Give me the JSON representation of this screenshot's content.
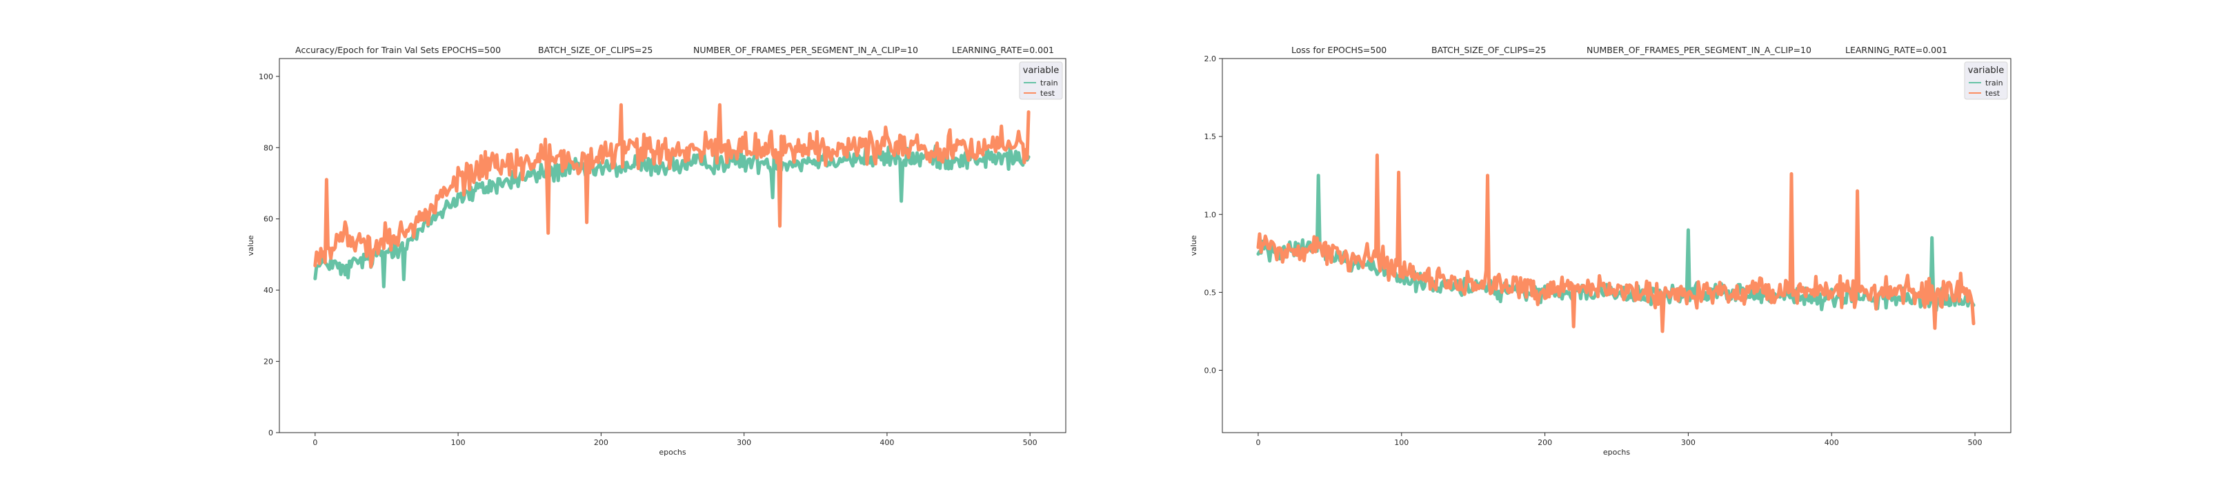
{
  "chart_data": [
    {
      "type": "line",
      "title_parts": [
        "Accuracy/Epoch for Train Val Sets EPOCHS=500",
        "BATCH_SIZE_OF_CLIPS=25",
        "NUMBER_OF_FRAMES_PER_SEGMENT_IN_A_CLIP=10",
        "LEARNING_RATE=0.001"
      ],
      "xlabel": "epochs",
      "ylabel": "value",
      "xlim": [
        -25,
        525
      ],
      "ylim": [
        0,
        105
      ],
      "xticks": [
        0,
        100,
        200,
        300,
        400,
        500
      ],
      "yticks": [
        0,
        20,
        40,
        60,
        80,
        100
      ],
      "x_range": [
        0,
        499
      ],
      "grid": false,
      "legend": {
        "title": "variable",
        "position": "top-right"
      },
      "series": [
        {
          "name": "train",
          "color": "#66c2a5",
          "anchors": [
            [
              0,
              46
            ],
            [
              10,
              48
            ],
            [
              20,
              45
            ],
            [
              30,
              48
            ],
            [
              40,
              49
            ],
            [
              50,
              51
            ],
            [
              60,
              53
            ],
            [
              70,
              55
            ],
            [
              80,
              59
            ],
            [
              90,
              63
            ],
            [
              100,
              66
            ],
            [
              110,
              67
            ],
            [
              120,
              69
            ],
            [
              130,
              70
            ],
            [
              140,
              71
            ],
            [
              150,
              72
            ],
            [
              160,
              73
            ],
            [
              180,
              74
            ],
            [
              200,
              74
            ],
            [
              220,
              75
            ],
            [
              240,
              75
            ],
            [
              260,
              75
            ],
            [
              280,
              76
            ],
            [
              300,
              76
            ],
            [
              320,
              76
            ],
            [
              340,
              76
            ],
            [
              360,
              77
            ],
            [
              380,
              77
            ],
            [
              400,
              77
            ],
            [
              420,
              77
            ],
            [
              440,
              77
            ],
            [
              460,
              77
            ],
            [
              480,
              77
            ],
            [
              499,
              77
            ]
          ],
          "noise": 4.5,
          "extremes": [
            [
              48,
              41
            ],
            [
              62,
              43
            ],
            [
              320,
              66
            ],
            [
              410,
              65
            ],
            [
              500,
              67
            ]
          ]
        },
        {
          "name": "test",
          "color": "#fc8d62",
          "anchors": [
            [
              0,
              49
            ],
            [
              10,
              52
            ],
            [
              20,
              55
            ],
            [
              30,
              53
            ],
            [
              40,
              52
            ],
            [
              50,
              54
            ],
            [
              60,
              56
            ],
            [
              70,
              58
            ],
            [
              80,
              62
            ],
            [
              90,
              67
            ],
            [
              100,
              71
            ],
            [
              110,
              73
            ],
            [
              120,
              75
            ],
            [
              130,
              75
            ],
            [
              140,
              76
            ],
            [
              160,
              77
            ],
            [
              180,
              77
            ],
            [
              200,
              78
            ],
            [
              220,
              79
            ],
            [
              240,
              79
            ],
            [
              260,
              79
            ],
            [
              280,
              80
            ],
            [
              300,
              80
            ],
            [
              320,
              80
            ],
            [
              340,
              80
            ],
            [
              360,
              80
            ],
            [
              380,
              80
            ],
            [
              400,
              80
            ],
            [
              420,
              80
            ],
            [
              440,
              80
            ],
            [
              460,
              80
            ],
            [
              480,
              80
            ],
            [
              499,
              80
            ]
          ],
          "noise": 6.5,
          "extremes": [
            [
              8,
              71
            ],
            [
              214,
              92
            ],
            [
              283,
              92
            ],
            [
              325,
              58
            ],
            [
              163,
              56
            ],
            [
              190,
              59
            ],
            [
              480,
              86
            ],
            [
              499,
              90
            ]
          ]
        }
      ]
    },
    {
      "type": "line",
      "title_parts": [
        "Loss for  EPOCHS=500",
        "BATCH_SIZE_OF_CLIPS=25",
        "NUMBER_OF_FRAMES_PER_SEGMENT_IN_A_CLIP=10",
        "LEARNING_RATE=0.001"
      ],
      "xlabel": "epochs",
      "ylabel": "value",
      "xlim": [
        -25,
        525
      ],
      "ylim": [
        -0.4,
        2.0
      ],
      "xticks": [
        0,
        100,
        200,
        300,
        400,
        500
      ],
      "yticks": [
        0.0,
        0.5,
        1.0,
        1.5,
        2.0
      ],
      "ytick_labels": [
        "0.0",
        "0.5",
        "1.0",
        "1.5",
        "2.0"
      ],
      "x_range": [
        0,
        499
      ],
      "grid": false,
      "legend": {
        "title": "variable",
        "position": "top-right"
      },
      "series": [
        {
          "name": "train",
          "color": "#66c2a5",
          "anchors": [
            [
              0,
              0.78
            ],
            [
              20,
              0.75
            ],
            [
              40,
              0.8
            ],
            [
              60,
              0.7
            ],
            [
              80,
              0.65
            ],
            [
              100,
              0.6
            ],
            [
              120,
              0.55
            ],
            [
              140,
              0.55
            ],
            [
              160,
              0.52
            ],
            [
              180,
              0.5
            ],
            [
              200,
              0.5
            ],
            [
              220,
              0.5
            ],
            [
              240,
              0.5
            ],
            [
              260,
              0.48
            ],
            [
              280,
              0.48
            ],
            [
              300,
              0.5
            ],
            [
              320,
              0.5
            ],
            [
              340,
              0.48
            ],
            [
              360,
              0.48
            ],
            [
              380,
              0.47
            ],
            [
              400,
              0.47
            ],
            [
              420,
              0.47
            ],
            [
              440,
              0.46
            ],
            [
              460,
              0.46
            ],
            [
              480,
              0.46
            ],
            [
              499,
              0.46
            ]
          ],
          "noise": 0.09,
          "extremes": [
            [
              42,
              1.25
            ],
            [
              300,
              0.9
            ],
            [
              470,
              0.85
            ]
          ]
        },
        {
          "name": "test",
          "color": "#fc8d62",
          "anchors": [
            [
              0,
              0.8
            ],
            [
              20,
              0.75
            ],
            [
              40,
              0.8
            ],
            [
              60,
              0.72
            ],
            [
              80,
              0.7
            ],
            [
              100,
              0.62
            ],
            [
              120,
              0.58
            ],
            [
              140,
              0.55
            ],
            [
              160,
              0.55
            ],
            [
              180,
              0.55
            ],
            [
              200,
              0.52
            ],
            [
              220,
              0.52
            ],
            [
              240,
              0.52
            ],
            [
              260,
              0.5
            ],
            [
              280,
              0.5
            ],
            [
              300,
              0.5
            ],
            [
              320,
              0.5
            ],
            [
              340,
              0.5
            ],
            [
              360,
              0.5
            ],
            [
              380,
              0.5
            ],
            [
              400,
              0.5
            ],
            [
              420,
              0.5
            ],
            [
              440,
              0.5
            ],
            [
              460,
              0.5
            ],
            [
              480,
              0.5
            ],
            [
              499,
              0.5
            ]
          ],
          "noise": 0.13,
          "extremes": [
            [
              83,
              1.38
            ],
            [
              98,
              1.27
            ],
            [
              160,
              1.25
            ],
            [
              372,
              1.26
            ],
            [
              418,
              1.15
            ],
            [
              220,
              0.28
            ],
            [
              282,
              0.25
            ],
            [
              472,
              0.27
            ],
            [
              499,
              0.3
            ]
          ]
        }
      ]
    }
  ]
}
